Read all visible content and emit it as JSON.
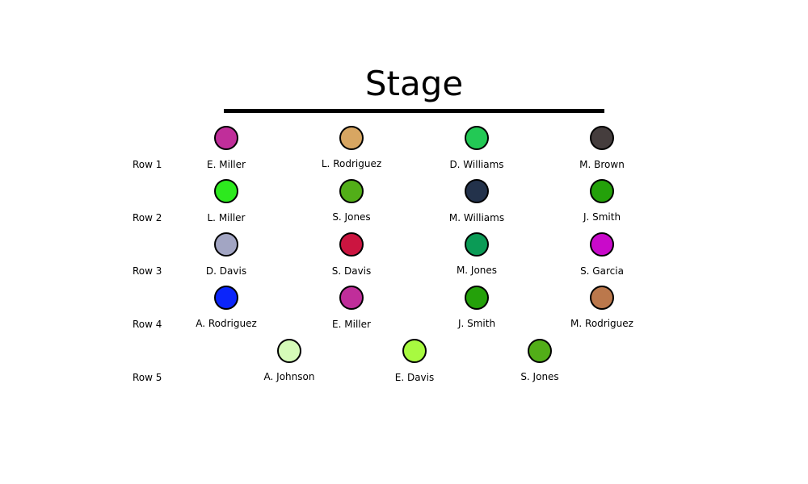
{
  "title": "Stage",
  "rows": [
    {
      "label": "Row 1",
      "seats": [
        {
          "name": "E. Miller",
          "color": "#C02E9A"
        },
        {
          "name": "L. Rodriguez",
          "color": "#D8A662"
        },
        {
          "name": "D. Williams",
          "color": "#23C955"
        },
        {
          "name": "M. Brown",
          "color": "#453D3D"
        }
      ]
    },
    {
      "label": "Row 2",
      "seats": [
        {
          "name": "L. Miller",
          "color": "#2DE91E"
        },
        {
          "name": "S. Jones",
          "color": "#52AE18"
        },
        {
          "name": "M. Williams",
          "color": "#23324B"
        },
        {
          "name": "J. Smith",
          "color": "#24A10A"
        }
      ]
    },
    {
      "label": "Row 3",
      "seats": [
        {
          "name": "D. Davis",
          "color": "#A2A5C3"
        },
        {
          "name": "S. Davis",
          "color": "#CB1540"
        },
        {
          "name": "M. Jones",
          "color": "#0B9B56"
        },
        {
          "name": "S. Garcia",
          "color": "#C90ACA"
        }
      ]
    },
    {
      "label": "Row 4",
      "seats": [
        {
          "name": "A. Rodriguez",
          "color": "#0B25FB"
        },
        {
          "name": "E. Miller",
          "color": "#C02E9A"
        },
        {
          "name": "J. Smith",
          "color": "#24A10A"
        },
        {
          "name": "M. Rodriguez",
          "color": "#BB784C"
        }
      ]
    },
    {
      "label": "Row 5",
      "seats": [
        {
          "name": "A. Johnson",
          "color": "#D5FBB8"
        },
        {
          "name": "E. Davis",
          "color": "#A8FA40"
        },
        {
          "name": "S. Jones",
          "color": "#52AE18"
        }
      ]
    }
  ]
}
